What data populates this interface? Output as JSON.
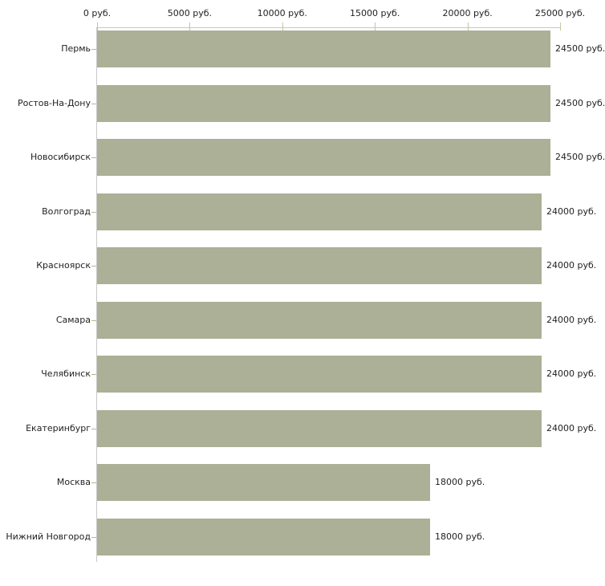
{
  "chart_data": {
    "type": "bar",
    "orientation": "horizontal",
    "title": "",
    "categories": [
      "Пермь",
      "Ростов-На-Дону",
      "Новосибирск",
      "Волгоград",
      "Красноярск",
      "Самара",
      "Челябинск",
      "Екатеринбург",
      "Москва",
      "Нижний Новгород"
    ],
    "values": [
      24500,
      24500,
      24500,
      24000,
      24000,
      24000,
      24000,
      24000,
      18000,
      18000
    ],
    "value_labels": [
      "24500 руб.",
      "24500 руб.",
      "24500 руб.",
      "24000 руб.",
      "24000 руб.",
      "24000 руб.",
      "24000 руб.",
      "24000 руб.",
      "18000 руб.",
      "18000 руб."
    ],
    "x_axis": {
      "min": 0,
      "max": 25000,
      "ticks": [
        0,
        5000,
        10000,
        15000,
        20000,
        25000
      ],
      "tick_labels": [
        "0 руб.",
        "5000 руб.",
        "10000 руб.",
        "15000 руб.",
        "20000 руб.",
        "25000 руб."
      ],
      "unit": "руб."
    },
    "legend": "none",
    "grid": "off",
    "colors": {
      "bar": "#abb096",
      "axis_line": "#c8c8c8",
      "x_tick": "#c3c69e",
      "y_tick": "#b4b894",
      "text": "#1f1f1f",
      "background": "#ffffff"
    }
  }
}
